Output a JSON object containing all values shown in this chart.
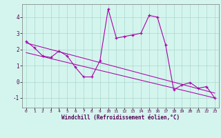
{
  "xlabel": "Windchill (Refroidissement éolien,°C)",
  "bg_color": "#d4f5ee",
  "line_color": "#aa00aa",
  "grid_color": "#aad8cc",
  "hours": [
    0,
    1,
    2,
    3,
    4,
    5,
    6,
    7,
    8,
    9,
    10,
    11,
    12,
    13,
    14,
    15,
    16,
    17,
    18,
    19,
    20,
    21,
    22,
    23
  ],
  "values": [
    2.5,
    2.1,
    1.6,
    1.5,
    1.9,
    1.6,
    0.9,
    0.3,
    0.3,
    1.3,
    4.5,
    2.7,
    2.8,
    2.9,
    3.0,
    4.1,
    4.0,
    2.3,
    -0.5,
    -0.2,
    -0.05,
    -0.4,
    -0.3,
    -1.0
  ],
  "trend1": [
    2.4,
    -0.7
  ],
  "trend2": [
    1.8,
    -1.0
  ],
  "ylim": [
    -1.6,
    4.8
  ],
  "xlim": [
    -0.5,
    23.5
  ],
  "xticks": [
    0,
    1,
    2,
    3,
    4,
    5,
    6,
    7,
    8,
    9,
    10,
    11,
    12,
    13,
    14,
    15,
    16,
    17,
    18,
    19,
    20,
    21,
    22,
    23
  ],
  "yticks": [
    -1,
    0,
    1,
    2,
    3,
    4
  ]
}
